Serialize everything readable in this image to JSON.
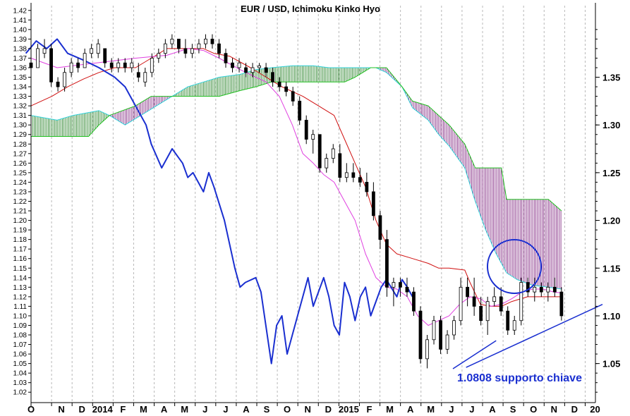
{
  "chart_data": {
    "type": "candlestick",
    "title": "EUR / USD, Ichimoku Kinko Hyo",
    "left_axis_ticks": [
      "1.02",
      "1.03",
      "1.04",
      "1.05",
      "1.06",
      "1.07",
      "1.08",
      "1.09",
      "1.10",
      "1.11",
      "1.12",
      "1.13",
      "1.14",
      "1.15",
      "1.16",
      "1.17",
      "1.18",
      "1.19",
      "1.20",
      "1.21",
      "1.22",
      "1.23",
      "1.24",
      "1.25",
      "1.26",
      "1.27",
      "1.28",
      "1.29",
      "1.30",
      "1.31",
      "1.32",
      "1.33",
      "1.34",
      "1.35",
      "1.36",
      "1.37",
      "1.38",
      "1.39",
      "1.40",
      "1.41",
      "1.42"
    ],
    "right_axis_ticks": [
      "1.05",
      "1.10",
      "1.15",
      "1.20",
      "1.25",
      "1.30",
      "1.35"
    ],
    "month_ticks": [
      "O",
      "N",
      "D",
      "2014",
      "F",
      "M",
      "A",
      "M",
      "J",
      "J",
      "A",
      "S",
      "O",
      "N",
      "D",
      "2015",
      "F",
      "M",
      "A",
      "M",
      "J",
      "J",
      "A",
      "S",
      "O",
      "N",
      "D",
      "20"
    ],
    "ylim": [
      1.015,
      1.425
    ],
    "annotation": {
      "text": "1.0808 supporto chiave",
      "value": 1.0808
    },
    "colors": {
      "tenkan": "#e040e0",
      "kijun": "#d01010",
      "senkou_a": "#30d0d8",
      "senkou_b": "#20c020",
      "chikou": "#1a2fd0",
      "cloud_bull": "#1a7a1a",
      "cloud_bear": "#7a1a7a",
      "trendline": "#1a2fd0",
      "grid": "#b8b8b8"
    },
    "series": [
      {
        "name": "tenkan",
        "points": [
          [
            0,
            1.37
          ],
          [
            10,
            1.36
          ],
          [
            25,
            1.365
          ],
          [
            40,
            1.37
          ],
          [
            52,
            1.373
          ],
          [
            60,
            1.38
          ],
          [
            66,
            1.378
          ],
          [
            72,
            1.37
          ],
          [
            80,
            1.358
          ],
          [
            86,
            1.35
          ],
          [
            90,
            1.345
          ],
          [
            95,
            1.33
          ],
          [
            100,
            1.3
          ],
          [
            104,
            1.27
          ],
          [
            108,
            1.26
          ],
          [
            112,
            1.248
          ],
          [
            116,
            1.24
          ],
          [
            120,
            1.22
          ],
          [
            124,
            1.2
          ],
          [
            128,
            1.165
          ],
          [
            132,
            1.14
          ],
          [
            136,
            1.13
          ],
          [
            140,
            1.128
          ],
          [
            144,
            1.12
          ],
          [
            148,
            1.1
          ],
          [
            152,
            1.09
          ],
          [
            156,
            1.095
          ],
          [
            160,
            1.1
          ],
          [
            164,
            1.112
          ],
          [
            168,
            1.12
          ],
          [
            172,
            1.118
          ],
          [
            176,
            1.11
          ],
          [
            180,
            1.112
          ],
          [
            184,
            1.118
          ],
          [
            188,
            1.125
          ],
          [
            192,
            1.128
          ],
          [
            196,
            1.128
          ],
          [
            200,
            1.125
          ],
          [
            203,
            1.124
          ]
        ]
      },
      {
        "name": "kijun",
        "points": [
          [
            0,
            1.32
          ],
          [
            8,
            1.33
          ],
          [
            14,
            1.34
          ],
          [
            20,
            1.348
          ],
          [
            26,
            1.355
          ],
          [
            32,
            1.36
          ],
          [
            40,
            1.36
          ],
          [
            46,
            1.37
          ],
          [
            52,
            1.38
          ],
          [
            58,
            1.38
          ],
          [
            66,
            1.38
          ],
          [
            70,
            1.375
          ],
          [
            76,
            1.372
          ],
          [
            84,
            1.36
          ],
          [
            90,
            1.35
          ],
          [
            96,
            1.34
          ],
          [
            104,
            1.33
          ],
          [
            110,
            1.32
          ],
          [
            116,
            1.31
          ],
          [
            120,
            1.285
          ],
          [
            124,
            1.26
          ],
          [
            128,
            1.235
          ],
          [
            132,
            1.2
          ],
          [
            136,
            1.175
          ],
          [
            140,
            1.165
          ],
          [
            146,
            1.16
          ],
          [
            152,
            1.155
          ],
          [
            156,
            1.15
          ],
          [
            160,
            1.15
          ],
          [
            166,
            1.148
          ],
          [
            168,
            1.135
          ],
          [
            172,
            1.112
          ],
          [
            176,
            1.11
          ],
          [
            180,
            1.11
          ],
          [
            184,
            1.115
          ],
          [
            190,
            1.12
          ],
          [
            196,
            1.12
          ],
          [
            203,
            1.12
          ]
        ]
      },
      {
        "name": "senkou_a",
        "points": [
          [
            0,
            1.31
          ],
          [
            10,
            1.305
          ],
          [
            16,
            1.31
          ],
          [
            22,
            1.313
          ],
          [
            26,
            1.315
          ],
          [
            30,
            1.31
          ],
          [
            36,
            1.3
          ],
          [
            42,
            1.31
          ],
          [
            48,
            1.32
          ],
          [
            54,
            1.33
          ],
          [
            60,
            1.34
          ],
          [
            66,
            1.345
          ],
          [
            72,
            1.35
          ],
          [
            80,
            1.353
          ],
          [
            86,
            1.358
          ],
          [
            92,
            1.36
          ],
          [
            100,
            1.362
          ],
          [
            108,
            1.362
          ],
          [
            114,
            1.36
          ],
          [
            120,
            1.36
          ],
          [
            126,
            1.36
          ],
          [
            132,
            1.36
          ],
          [
            136,
            1.355
          ],
          [
            142,
            1.34
          ],
          [
            146,
            1.318
          ],
          [
            152,
            1.305
          ],
          [
            156,
            1.29
          ],
          [
            160,
            1.278
          ],
          [
            166,
            1.255
          ],
          [
            170,
            1.22
          ],
          [
            174,
            1.19
          ],
          [
            178,
            1.165
          ],
          [
            182,
            1.145
          ],
          [
            186,
            1.138
          ],
          [
            192,
            1.132
          ],
          [
            198,
            1.13
          ],
          [
            203,
            1.128
          ]
        ]
      },
      {
        "name": "senkou_b",
        "points": [
          [
            0,
            1.288
          ],
          [
            22,
            1.288
          ],
          [
            26,
            1.3
          ],
          [
            30,
            1.31
          ],
          [
            40,
            1.32
          ],
          [
            46,
            1.33
          ],
          [
            58,
            1.33
          ],
          [
            64,
            1.33
          ],
          [
            72,
            1.33
          ],
          [
            80,
            1.336
          ],
          [
            86,
            1.34
          ],
          [
            92,
            1.345
          ],
          [
            100,
            1.345
          ],
          [
            108,
            1.345
          ],
          [
            114,
            1.345
          ],
          [
            120,
            1.345
          ],
          [
            124,
            1.35
          ],
          [
            130,
            1.36
          ],
          [
            136,
            1.36
          ],
          [
            142,
            1.34
          ],
          [
            146,
            1.325
          ],
          [
            152,
            1.32
          ],
          [
            156,
            1.31
          ],
          [
            160,
            1.3
          ],
          [
            166,
            1.28
          ],
          [
            170,
            1.255
          ],
          [
            180,
            1.255
          ],
          [
            182,
            1.222
          ],
          [
            192,
            1.222
          ],
          [
            198,
            1.222
          ],
          [
            203,
            1.21
          ]
        ]
      },
      {
        "name": "chikou",
        "points": [
          [
            -2,
            1.375
          ],
          [
            2,
            1.388
          ],
          [
            6,
            1.38
          ],
          [
            10,
            1.39
          ],
          [
            14,
            1.375
          ],
          [
            20,
            1.368
          ],
          [
            26,
            1.36
          ],
          [
            32,
            1.35
          ],
          [
            36,
            1.34
          ],
          [
            40,
            1.32
          ],
          [
            44,
            1.3
          ],
          [
            46,
            1.28
          ],
          [
            50,
            1.255
          ],
          [
            54,
            1.275
          ],
          [
            58,
            1.26
          ],
          [
            60,
            1.245
          ],
          [
            62,
            1.25
          ],
          [
            64,
            1.24
          ],
          [
            66,
            1.23
          ],
          [
            68,
            1.25
          ],
          [
            70,
            1.235
          ],
          [
            74,
            1.2
          ],
          [
            78,
            1.15
          ],
          [
            80,
            1.13
          ],
          [
            82,
            1.135
          ],
          [
            86,
            1.14
          ],
          [
            88,
            1.125
          ],
          [
            92,
            1.05
          ],
          [
            94,
            1.09
          ],
          [
            96,
            1.1
          ],
          [
            98,
            1.06
          ],
          [
            100,
            1.08
          ],
          [
            102,
            1.1
          ],
          [
            104,
            1.12
          ],
          [
            106,
            1.14
          ],
          [
            108,
            1.11
          ],
          [
            112,
            1.14
          ],
          [
            114,
            1.12
          ],
          [
            116,
            1.09
          ],
          [
            118,
            1.08
          ],
          [
            120,
            1.135
          ],
          [
            122,
            1.12
          ],
          [
            124,
            1.095
          ],
          [
            126,
            1.12
          ],
          [
            128,
            1.13
          ],
          [
            130,
            1.1
          ],
          [
            132,
            1.115
          ],
          [
            134,
            1.13
          ],
          [
            136,
            1.138
          ],
          [
            140,
            1.12
          ],
          [
            142,
            1.138
          ],
          [
            144,
            1.13
          ],
          [
            146,
            1.12
          ]
        ]
      }
    ],
    "candles": [
      [
        1.365,
        1.372,
        1.35,
        1.36
      ],
      [
        1.36,
        1.385,
        1.36,
        1.38
      ],
      [
        1.375,
        1.39,
        1.37,
        1.38
      ],
      [
        1.38,
        1.385,
        1.34,
        1.345
      ],
      [
        1.345,
        1.35,
        1.335,
        1.34
      ],
      [
        1.34,
        1.36,
        1.335,
        1.355
      ],
      [
        1.355,
        1.37,
        1.35,
        1.365
      ],
      [
        1.365,
        1.37,
        1.355,
        1.36
      ],
      [
        1.36,
        1.38,
        1.36,
        1.375
      ],
      [
        1.375,
        1.385,
        1.37,
        1.38
      ],
      [
        1.375,
        1.39,
        1.37,
        1.385
      ],
      [
        1.38,
        1.38,
        1.36,
        1.365
      ],
      [
        1.365,
        1.37,
        1.355,
        1.36
      ],
      [
        1.36,
        1.37,
        1.355,
        1.365
      ],
      [
        1.365,
        1.37,
        1.355,
        1.36
      ],
      [
        1.36,
        1.37,
        1.355,
        1.365
      ],
      [
        1.355,
        1.365,
        1.345,
        1.35
      ],
      [
        1.345,
        1.36,
        1.34,
        1.355
      ],
      [
        1.355,
        1.375,
        1.35,
        1.37
      ],
      [
        1.37,
        1.38,
        1.365,
        1.375
      ],
      [
        1.375,
        1.39,
        1.37,
        1.385
      ],
      [
        1.385,
        1.395,
        1.38,
        1.39
      ],
      [
        1.39,
        1.39,
        1.375,
        1.38
      ],
      [
        1.38,
        1.39,
        1.37,
        1.375
      ],
      [
        1.375,
        1.385,
        1.37,
        1.38
      ],
      [
        1.38,
        1.39,
        1.375,
        1.385
      ],
      [
        1.385,
        1.395,
        1.38,
        1.39
      ],
      [
        1.39,
        1.395,
        1.38,
        1.385
      ],
      [
        1.385,
        1.39,
        1.37,
        1.375
      ],
      [
        1.375,
        1.38,
        1.36,
        1.365
      ],
      [
        1.365,
        1.37,
        1.355,
        1.36
      ],
      [
        1.36,
        1.37,
        1.355,
        1.365
      ],
      [
        1.36,
        1.365,
        1.35,
        1.355
      ],
      [
        1.355,
        1.365,
        1.35,
        1.36
      ],
      [
        1.36,
        1.365,
        1.355,
        1.362
      ],
      [
        1.36,
        1.365,
        1.35,
        1.355
      ],
      [
        1.355,
        1.36,
        1.34,
        1.345
      ],
      [
        1.345,
        1.35,
        1.335,
        1.34
      ],
      [
        1.34,
        1.345,
        1.33,
        1.335
      ],
      [
        1.335,
        1.34,
        1.32,
        1.325
      ],
      [
        1.325,
        1.33,
        1.3,
        1.305
      ],
      [
        1.305,
        1.31,
        1.28,
        1.285
      ],
      [
        1.285,
        1.295,
        1.27,
        1.29
      ],
      [
        1.29,
        1.29,
        1.25,
        1.255
      ],
      [
        1.255,
        1.27,
        1.25,
        1.265
      ],
      [
        1.265,
        1.28,
        1.26,
        1.275
      ],
      [
        1.27,
        1.28,
        1.24,
        1.245
      ],
      [
        1.245,
        1.26,
        1.24,
        1.25
      ],
      [
        1.25,
        1.26,
        1.24,
        1.245
      ],
      [
        1.245,
        1.255,
        1.235,
        1.24
      ],
      [
        1.24,
        1.25,
        1.225,
        1.23
      ],
      [
        1.23,
        1.24,
        1.2,
        1.205
      ],
      [
        1.205,
        1.21,
        1.17,
        1.18
      ],
      [
        1.18,
        1.19,
        1.12,
        1.13
      ],
      [
        1.13,
        1.14,
        1.11,
        1.135
      ],
      [
        1.135,
        1.14,
        1.12,
        1.13
      ],
      [
        1.13,
        1.14,
        1.12,
        1.125
      ],
      [
        1.125,
        1.13,
        1.1,
        1.105
      ],
      [
        1.105,
        1.11,
        1.05,
        1.055
      ],
      [
        1.055,
        1.08,
        1.045,
        1.075
      ],
      [
        1.075,
        1.1,
        1.07,
        1.095
      ],
      [
        1.095,
        1.1,
        1.06,
        1.065
      ],
      [
        1.065,
        1.085,
        1.06,
        1.08
      ],
      [
        1.08,
        1.1,
        1.075,
        1.095
      ],
      [
        1.095,
        1.14,
        1.09,
        1.13
      ],
      [
        1.13,
        1.14,
        1.11,
        1.12
      ],
      [
        1.12,
        1.14,
        1.1,
        1.11
      ],
      [
        1.11,
        1.12,
        1.09,
        1.095
      ],
      [
        1.095,
        1.12,
        1.08,
        1.115
      ],
      [
        1.115,
        1.13,
        1.11,
        1.12
      ],
      [
        1.12,
        1.13,
        1.1,
        1.105
      ],
      [
        1.105,
        1.11,
        1.08,
        1.085
      ],
      [
        1.085,
        1.1,
        1.08,
        1.095
      ],
      [
        1.095,
        1.14,
        1.09,
        1.135
      ],
      [
        1.135,
        1.14,
        1.12,
        1.125
      ],
      [
        1.125,
        1.14,
        1.115,
        1.13
      ],
      [
        1.13,
        1.135,
        1.12,
        1.125
      ],
      [
        1.125,
        1.135,
        1.115,
        1.13
      ],
      [
        1.13,
        1.14,
        1.12,
        1.125
      ],
      [
        1.125,
        1.13,
        1.095,
        1.1
      ]
    ]
  }
}
